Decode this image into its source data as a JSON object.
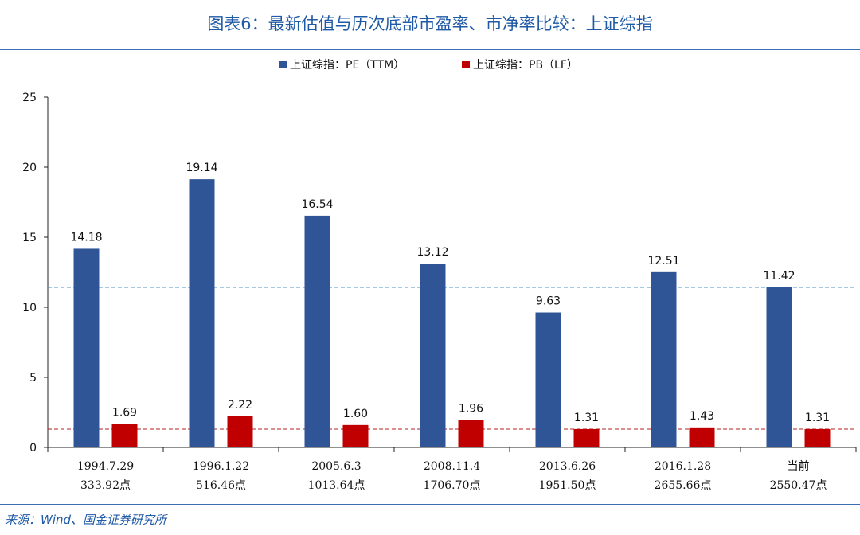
{
  "title": "图表6：最新估值与历次底部市盈率、市净率比较：上证综指",
  "source": "来源：Wind、国金证券研究所",
  "colors": {
    "pe": "#2f5597",
    "pb": "#c00000",
    "pe_ref_line": "#4a90c2",
    "pb_ref_line": "#b22222",
    "title": "#1f5aa6"
  },
  "chart_data": {
    "type": "bar",
    "categories": [
      [
        "1994.7.29",
        "333.92点"
      ],
      [
        "1996.1.22",
        "516.46点"
      ],
      [
        "2005.6.3",
        "1013.64点"
      ],
      [
        "2008.11.4",
        "1706.70点"
      ],
      [
        "2013.6.26",
        "1951.50点"
      ],
      [
        "2016.1.28",
        "2655.66点"
      ],
      [
        "当前",
        "2550.47点"
      ]
    ],
    "series": [
      {
        "name": "上证综指：PE（TTM）",
        "key": "pe",
        "values": [
          14.18,
          19.14,
          16.54,
          13.12,
          9.63,
          12.51,
          11.42
        ],
        "labels": [
          "14.18",
          "19.14",
          "16.54",
          "13.12",
          "9.63",
          "12.51",
          "11.42"
        ]
      },
      {
        "name": "上证综指：PB（LF）",
        "key": "pb",
        "values": [
          1.69,
          2.22,
          1.6,
          1.96,
          1.31,
          1.43,
          1.31
        ],
        "labels": [
          "1.69",
          "2.22",
          "1.60",
          "1.96",
          "1.31",
          "1.43",
          "1.31"
        ]
      }
    ],
    "reference_lines": [
      {
        "series": "pe",
        "value": 11.42,
        "style": "dashed"
      },
      {
        "series": "pb",
        "value": 1.31,
        "style": "dashed"
      }
    ],
    "ylim": [
      0,
      25
    ],
    "yticks": [
      "0",
      "5",
      "10",
      "15",
      "20",
      "25"
    ],
    "ytick_values": [
      0,
      5,
      10,
      15,
      20,
      25
    ],
    "legend": "top-center",
    "grid": false
  }
}
